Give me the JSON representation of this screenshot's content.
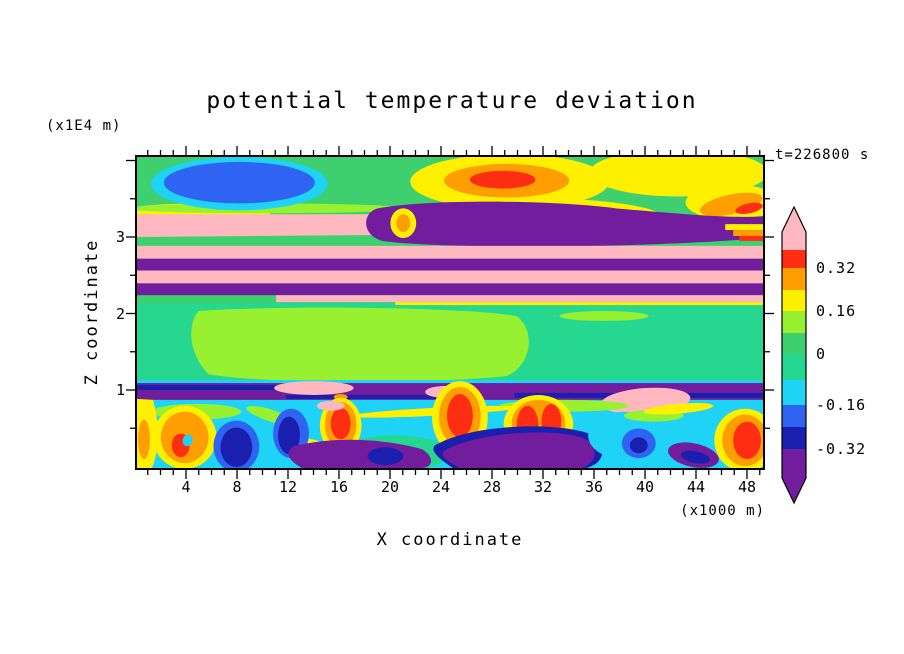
{
  "title": "potential temperature deviation",
  "time_label": "t=226800 s",
  "axes": {
    "x_label": "X coordinate",
    "x_unit": "(x1000 m)",
    "x_ticks": [
      "4",
      "8",
      "12",
      "16",
      "20",
      "24",
      "28",
      "32",
      "36",
      "40",
      "44",
      "48"
    ],
    "y_label": "Z coordinate",
    "y_unit": "(x1E4 m)",
    "y_ticks": [
      "1",
      "2",
      "3"
    ]
  },
  "colorbar": {
    "ticks": [
      "0.32",
      "0.16",
      "0",
      "-0.16",
      "-0.32"
    ],
    "segments_top_to_bottom": [
      "pink",
      "red",
      "orange",
      "yellow",
      "chartreuse",
      "green",
      "teal",
      "cyan",
      "blue",
      "navy",
      "purple"
    ]
  },
  "palette": {
    "pink": "#ffb8bf",
    "red": "#ff2d12",
    "orange": "#ff9e00",
    "yellow": "#fff000",
    "chartreuse": "#97f130",
    "green": "#3ecf6e",
    "teal": "#25d78f",
    "cyan": "#1ed3f5",
    "blue": "#2f63f2",
    "navy": "#1b1fae",
    "purple": "#721c9e"
  },
  "chart_data": {
    "type": "heatmap",
    "title": "potential temperature deviation",
    "xlabel": "X coordinate (x1000 m)",
    "ylabel": "Z coordinate (x1E4 m)",
    "x_range": [
      0,
      49.5
    ],
    "y_range": [
      0,
      4.1
    ],
    "x_ticks": [
      4,
      8,
      12,
      16,
      20,
      24,
      28,
      32,
      36,
      40,
      44,
      48
    ],
    "y_ticks": [
      1,
      2,
      3
    ],
    "time_label": "t=226800 s",
    "time_seconds": 226800,
    "contour_level_labels": [
      0.32,
      0.16,
      0,
      -0.16,
      -0.32
    ],
    "colorbar_order_top_to_bottom": [
      "pink",
      "red",
      "orange",
      "yellow",
      "chartreuse",
      "green",
      "teal",
      "cyan",
      "blue",
      "navy",
      "purple"
    ],
    "features": [
      "cold (blue/cyan) anomaly near top-left, x=2-13, z=3.6-4.0",
      "warm (red/orange/yellow) anomaly top-center, x=19-37, z=3.5-4.0",
      "yellow/orange warm streaks along upper-right corner",
      "alternating pink(+) and purple(-) horizontal wave layers, z=2.5-3.3",
      "near-zero uniform green layer, z=1.2-2.4, with slightly positive chartreuse pocket x=5-30",
      "thin negative purple band with pink warm patches at z=1.0",
      "turbulent convective mixed layer below z=0.9 with strong +/- plumes (red, orange, blue, navy, purple swirls on cyan/green background)"
    ]
  }
}
